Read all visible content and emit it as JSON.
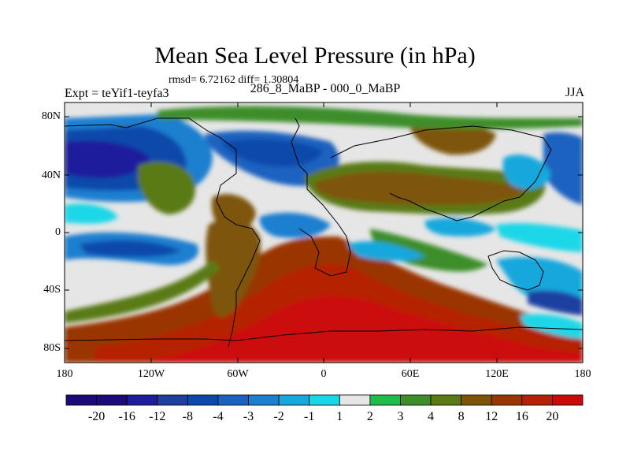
{
  "title": "Mean Sea Level Pressure (in hPa)",
  "stats": "rmsd= 6.72162 diff= 1.30804",
  "experiment": "Expt = teYif1-teyfa3",
  "comparison": "286_8_MaBP - 000_0_MaBP",
  "season": "JJA",
  "lat_labels": [
    "80N",
    "40N",
    "0",
    "40S",
    "80S"
  ],
  "lon_labels": [
    "180",
    "120W",
    "60W",
    "0",
    "60E",
    "120E",
    "180"
  ],
  "colorbar": {
    "labels": [
      "-20",
      "-16",
      "-12",
      "-8",
      "-4",
      "-3",
      "-2",
      "-1",
      "1",
      "2",
      "3",
      "4",
      "8",
      "12",
      "16",
      "20"
    ],
    "colors": [
      "#1a0a7a",
      "#1e1e9c",
      "#1f3fa0",
      "#0b4aaa",
      "#1a62c0",
      "#1d7fd0",
      "#19a8dd",
      "#1ad7e8",
      "#e6e6e6",
      "#1fbc4b",
      "#3d8e2a",
      "#5a7a14",
      "#7e5508",
      "#9a3506",
      "#b52006",
      "#cc0a0a"
    ]
  },
  "colors": {
    "border": "#000000",
    "background": "#ffffff"
  }
}
